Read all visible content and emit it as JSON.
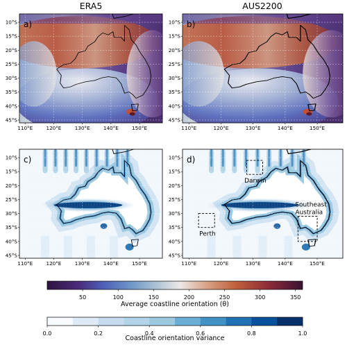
{
  "figure": {
    "columns": [
      "ERA5",
      "AUS2200"
    ],
    "panels": [
      {
        "id": "a",
        "label": "a)",
        "kind": "orientation"
      },
      {
        "id": "b",
        "label": "b)",
        "kind": "orientation"
      },
      {
        "id": "c",
        "label": "c)",
        "kind": "variance"
      },
      {
        "id": "d",
        "label": "d)",
        "kind": "variance"
      }
    ],
    "lat_ticks": [
      "10°S",
      "15°S",
      "20°S",
      "25°S",
      "30°S",
      "35°S",
      "40°S",
      "45°S"
    ],
    "lon_ticks": [
      "110°E",
      "120°E",
      "130°E",
      "140°E",
      "150°E"
    ],
    "regions": [
      {
        "name": "Darwin",
        "label": "Darwin",
        "lon": [
          128,
          133
        ],
        "lat": [
          -16,
          -11
        ]
      },
      {
        "name": "Perth",
        "label": "Perth",
        "lon": [
          113,
          118
        ],
        "lat": [
          -35,
          -30
        ]
      },
      {
        "name": "Southeast Australia",
        "label_lines": [
          "Southeast",
          "Australia"
        ],
        "lon": [
          144,
          150
        ],
        "lat": [
          -40,
          -31
        ]
      }
    ],
    "colorbars": [
      {
        "name": "orientation",
        "label": "Average coastline orientation (θ)",
        "ticks": [
          "50",
          "100",
          "150",
          "200",
          "250",
          "300",
          "350"
        ],
        "tick_values": [
          50,
          100,
          150,
          200,
          250,
          300,
          350
        ],
        "range": [
          0,
          360
        ],
        "cmap": "twilight_shifted"
      },
      {
        "name": "variance",
        "label": "Coastline orientation variance",
        "ticks": [
          "0.0",
          "0.2",
          "0.4",
          "0.6",
          "0.8",
          "1.0"
        ],
        "tick_values": [
          0,
          0.2,
          0.4,
          0.6,
          0.8,
          1.0
        ],
        "range": [
          0,
          1
        ],
        "levels": 10,
        "cmap": "Blues"
      }
    ],
    "colors": {
      "deep_purple": "#3b1a52",
      "blue": "#5a7cc2",
      "light": "#e8ebf0",
      "orange": "#c86b3c",
      "dark_red": "#5a1a28",
      "blues_dark": "#08306b",
      "blues_light": "#f7fbff"
    }
  }
}
